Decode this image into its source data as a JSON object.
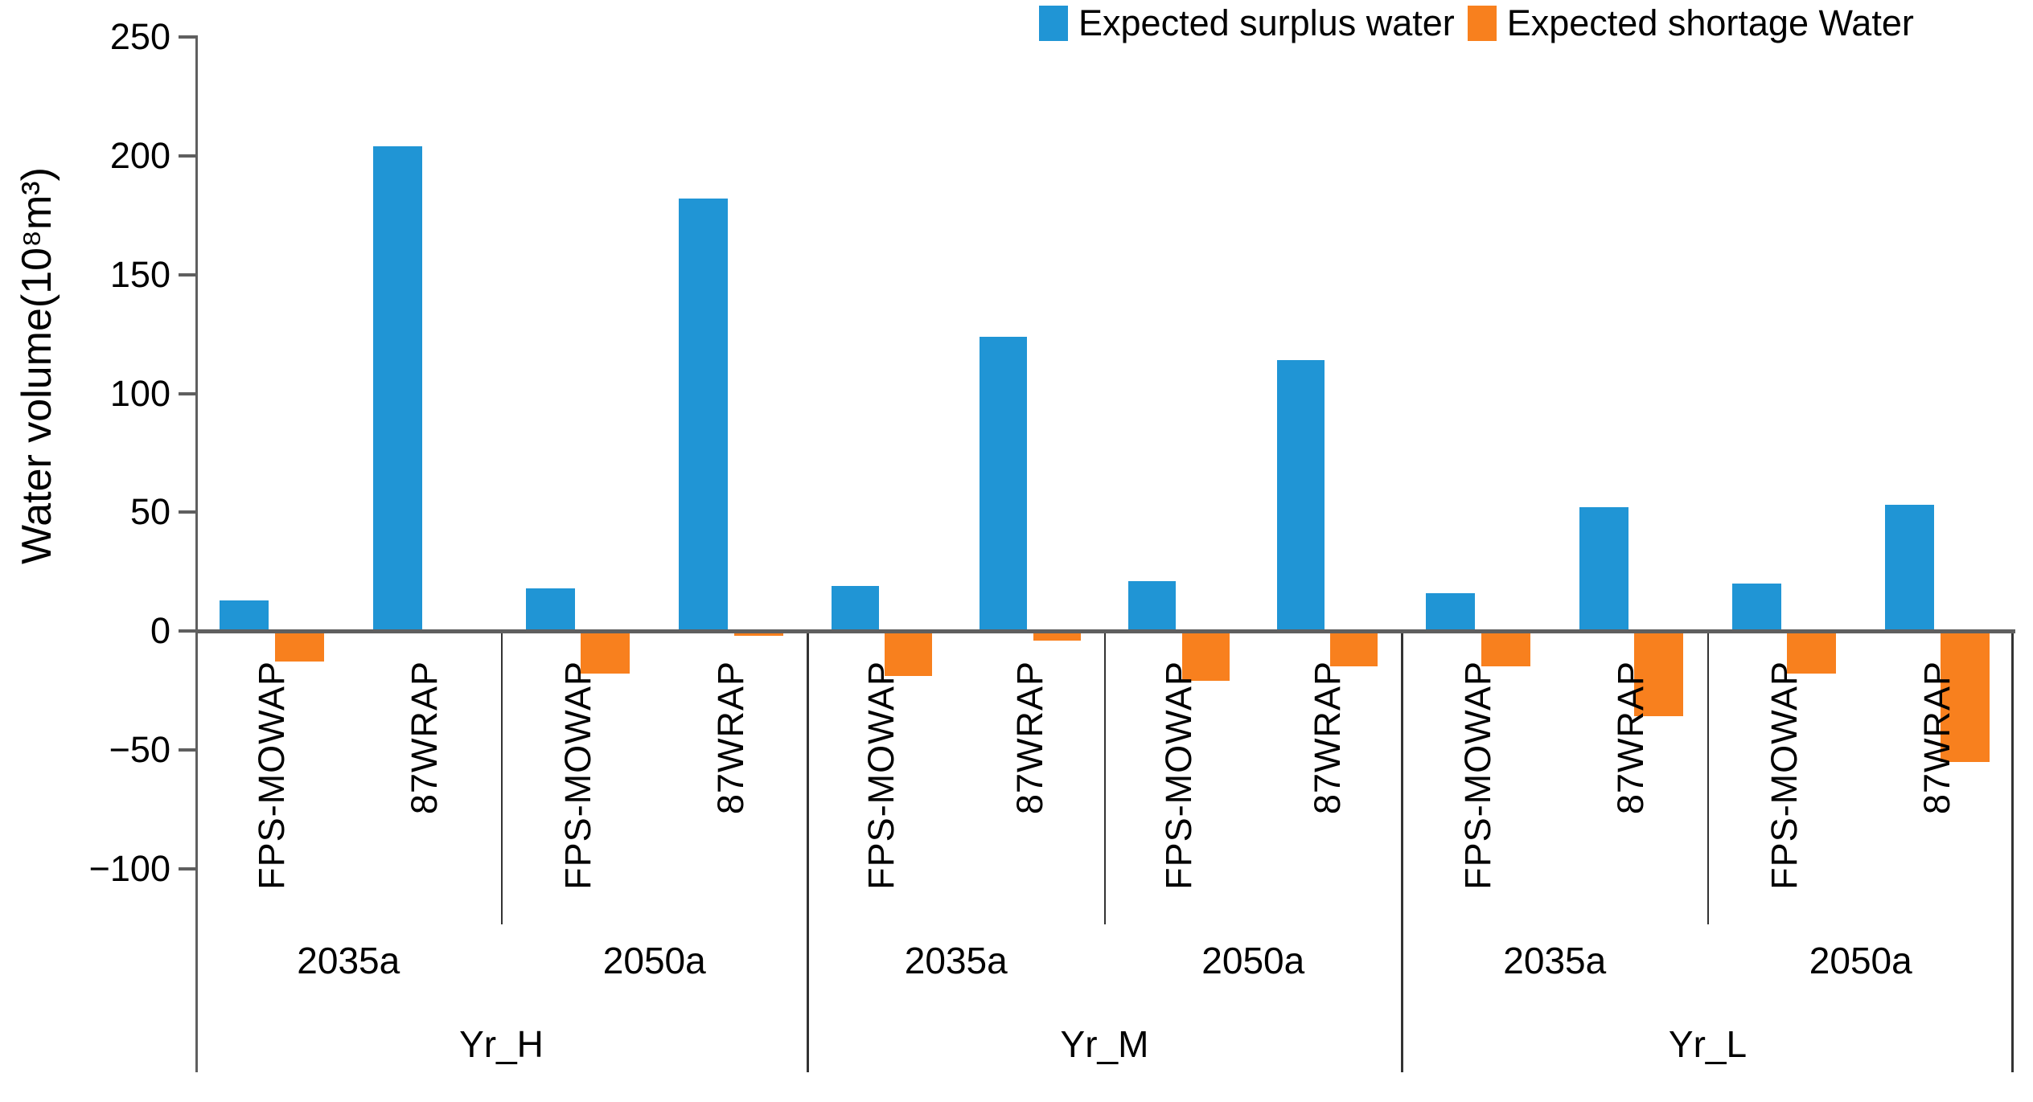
{
  "chart_data": {
    "type": "bar",
    "title": "",
    "ylabel": "Water volume(10⁸m³)",
    "xlabel": "",
    "ylim": [
      -100,
      250
    ],
    "yticks": [
      250,
      200,
      150,
      100,
      50,
      0,
      -50,
      -100
    ],
    "grid": false,
    "legend_position": "top-right",
    "series_names": [
      "Expected surplus water",
      "Expected shortage Water"
    ],
    "colors": {
      "surplus": "#2095d5",
      "shortage": "#f8801e",
      "axis": "#5f5f5f",
      "divider": "#333333",
      "text": "#000000"
    },
    "unit": "10⁸ m³",
    "groups": [
      {
        "scenario": "Yr_H",
        "years": [
          {
            "year": "2035a",
            "bars": [
              {
                "model": "FPS-MOWAP",
                "surplus": 13,
                "shortage": -13
              },
              {
                "model": "87WRAP",
                "surplus": 204,
                "shortage": 0
              }
            ]
          },
          {
            "year": "2050a",
            "bars": [
              {
                "model": "FPS-MOWAP",
                "surplus": 18,
                "shortage": -18
              },
              {
                "model": "87WRAP",
                "surplus": 182,
                "shortage": -2
              }
            ]
          }
        ]
      },
      {
        "scenario": "Yr_M",
        "years": [
          {
            "year": "2035a",
            "bars": [
              {
                "model": "FPS-MOWAP",
                "surplus": 19,
                "shortage": -19
              },
              {
                "model": "87WRAP",
                "surplus": 124,
                "shortage": -4
              }
            ]
          },
          {
            "year": "2050a",
            "bars": [
              {
                "model": "FPS-MOWAP",
                "surplus": 21,
                "shortage": -21
              },
              {
                "model": "87WRAP",
                "surplus": 114,
                "shortage": -15
              }
            ]
          }
        ]
      },
      {
        "scenario": "Yr_L",
        "years": [
          {
            "year": "2035a",
            "bars": [
              {
                "model": "FPS-MOWAP",
                "surplus": 16,
                "shortage": -15
              },
              {
                "model": "87WRAP",
                "surplus": 52,
                "shortage": -36
              }
            ]
          },
          {
            "year": "2050a",
            "bars": [
              {
                "model": "FPS-MOWAP",
                "surplus": 20,
                "shortage": -18
              },
              {
                "model": "87WRAP",
                "surplus": 53,
                "shortage": -55
              }
            ]
          }
        ]
      }
    ]
  }
}
